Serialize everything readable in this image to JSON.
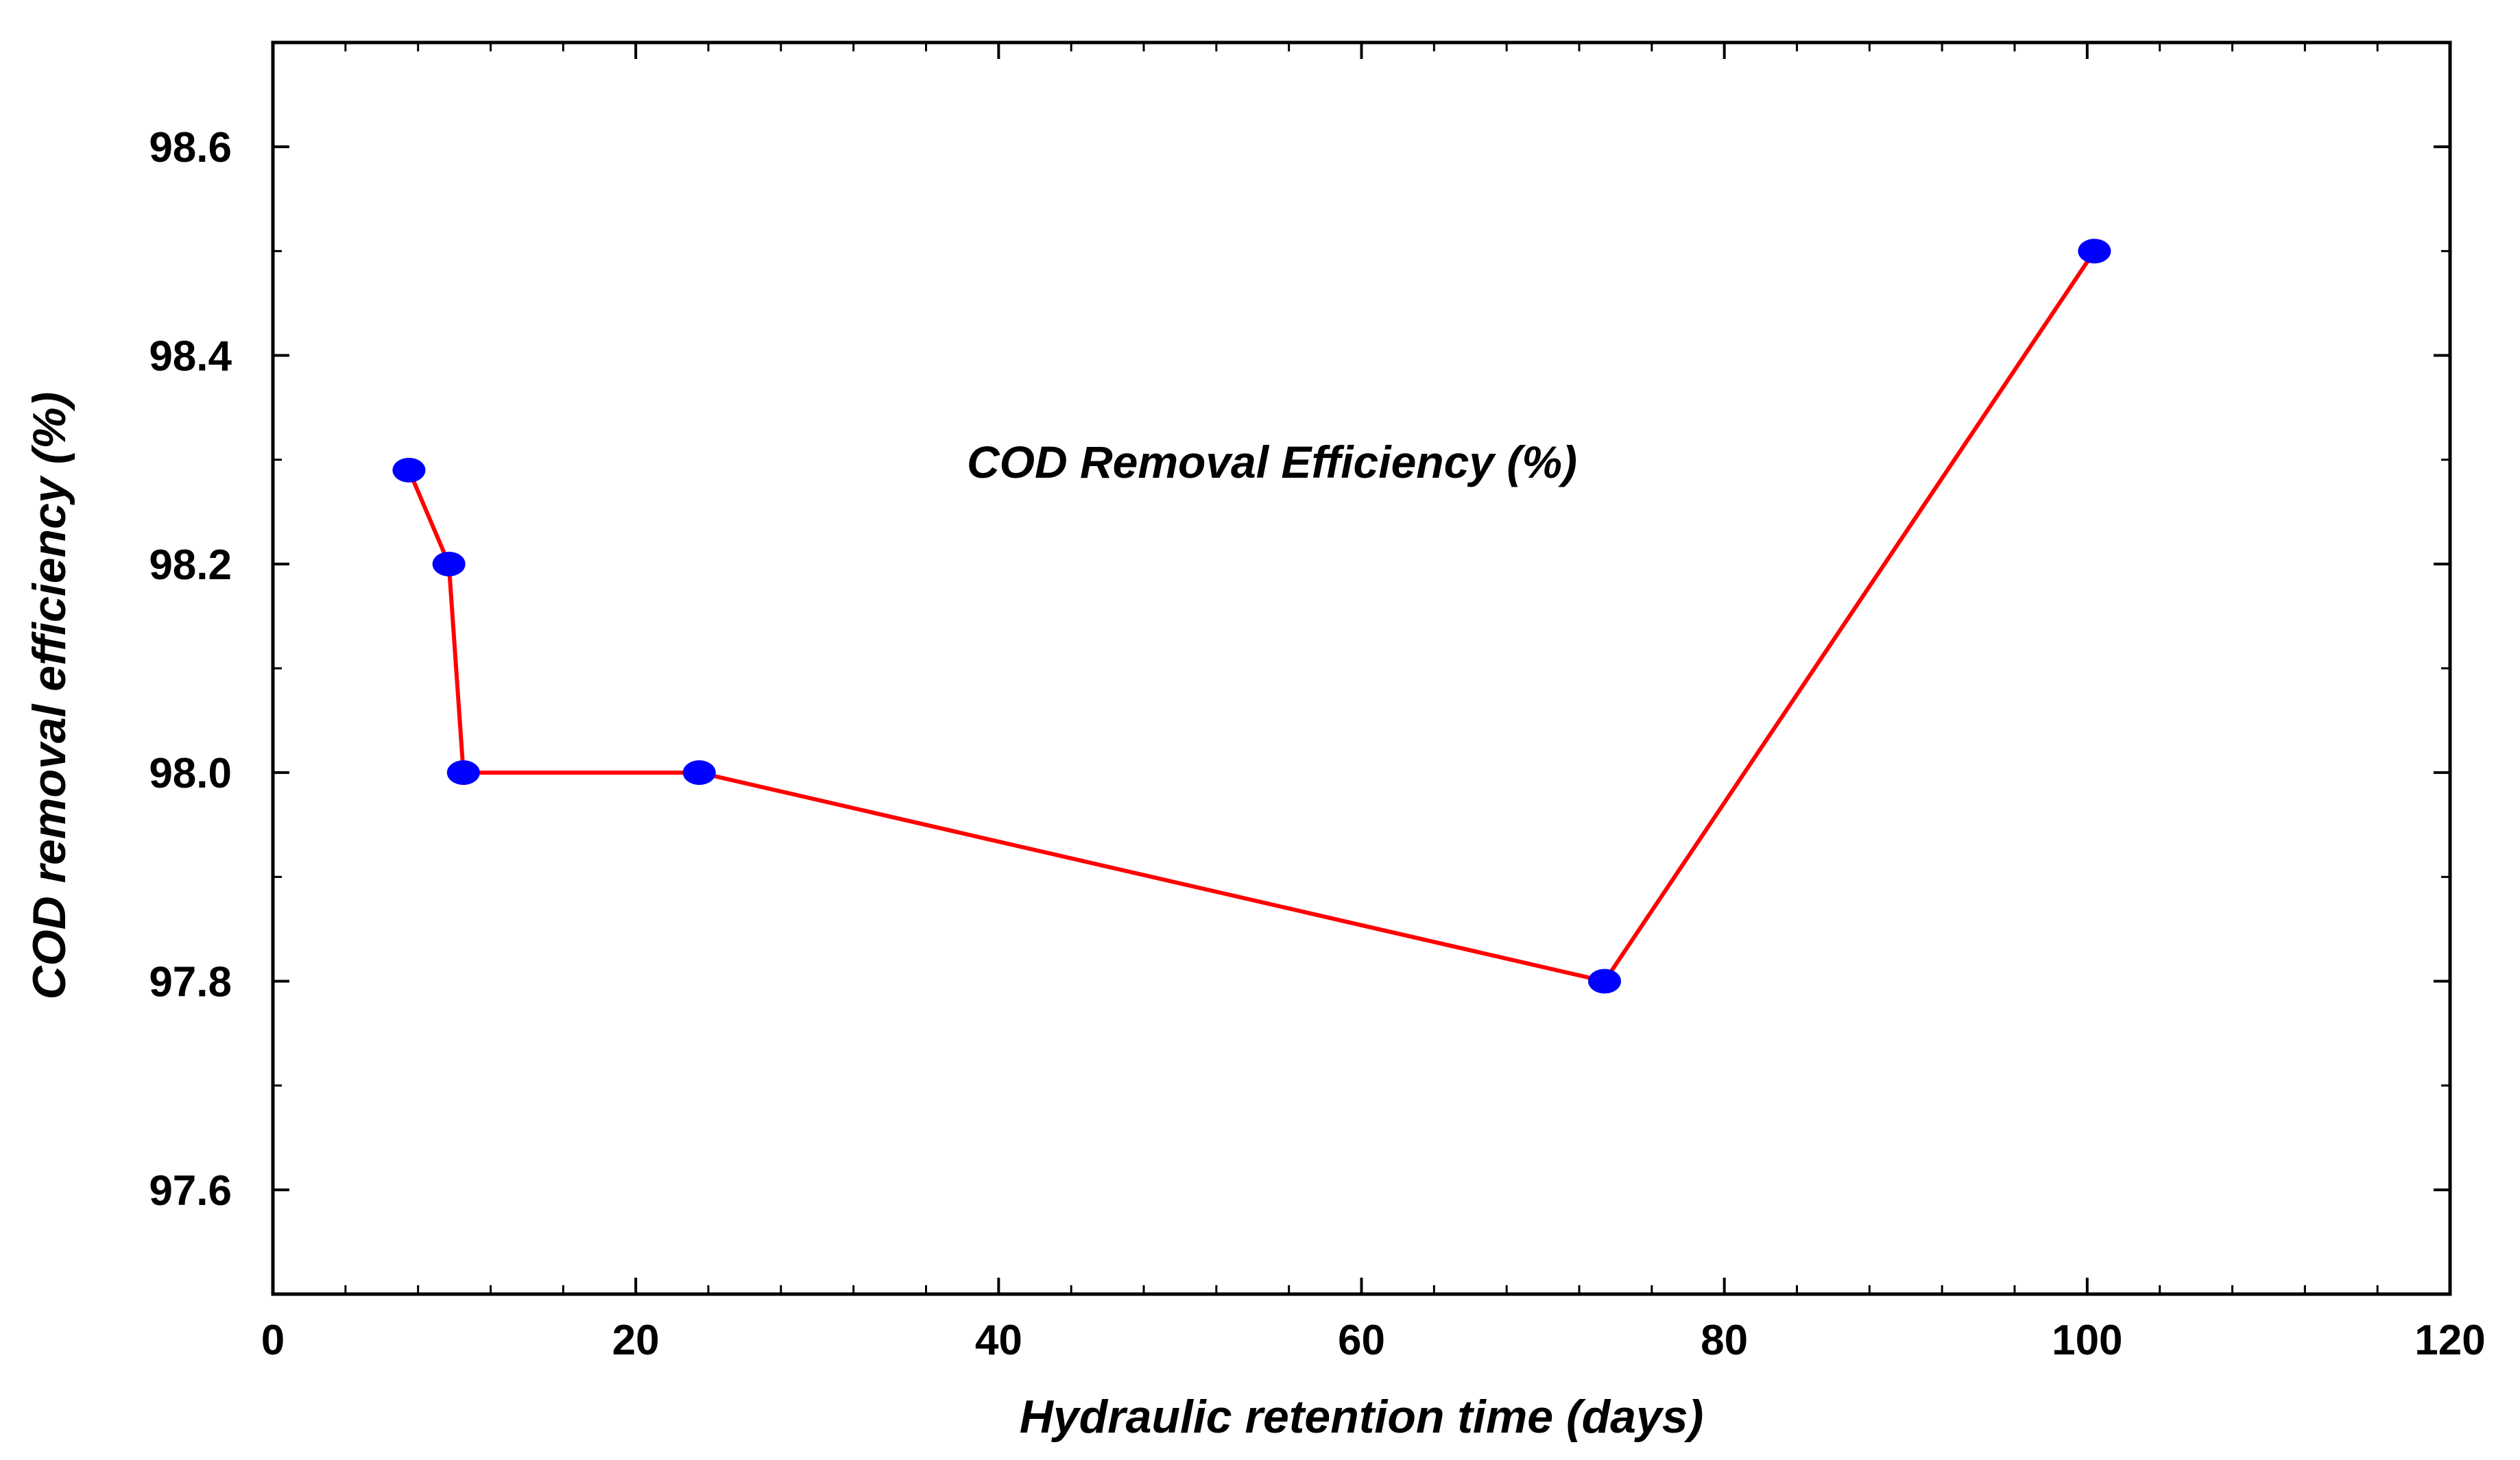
{
  "chart_data": {
    "type": "line",
    "title": "",
    "annotation": "COD Removal Efficiency (%)",
    "xlabel": "Hydraulic retention time (days)",
    "ylabel": "COD removal efficiency (%)",
    "xlim": [
      0,
      120
    ],
    "ylim": [
      97.5,
      98.7
    ],
    "xticks": [
      0,
      20,
      40,
      60,
      80,
      100,
      120
    ],
    "xtick_labels": [
      "0",
      "20",
      "40",
      "60",
      "80",
      "100",
      "120"
    ],
    "yticks": [
      97.6,
      97.8,
      98.0,
      98.2,
      98.4,
      98.6
    ],
    "ytick_labels": [
      "97.6",
      "97.8",
      "98.0",
      "98.2",
      "98.4",
      "98.6"
    ],
    "x_minor_step": 4,
    "y_minor_step": 0.1,
    "grid": false,
    "series": [
      {
        "name": "COD Removal Efficiency (%)",
        "x": [
          7.5,
          9.7,
          10.5,
          23.5,
          73.4,
          100.4
        ],
        "y": [
          98.29,
          98.2,
          98.0,
          98.0,
          97.8,
          98.5
        ]
      }
    ],
    "colors": {
      "line": "#ff0000",
      "marker": "#0000ff",
      "axis": "#000000",
      "background": "#ffffff"
    }
  }
}
